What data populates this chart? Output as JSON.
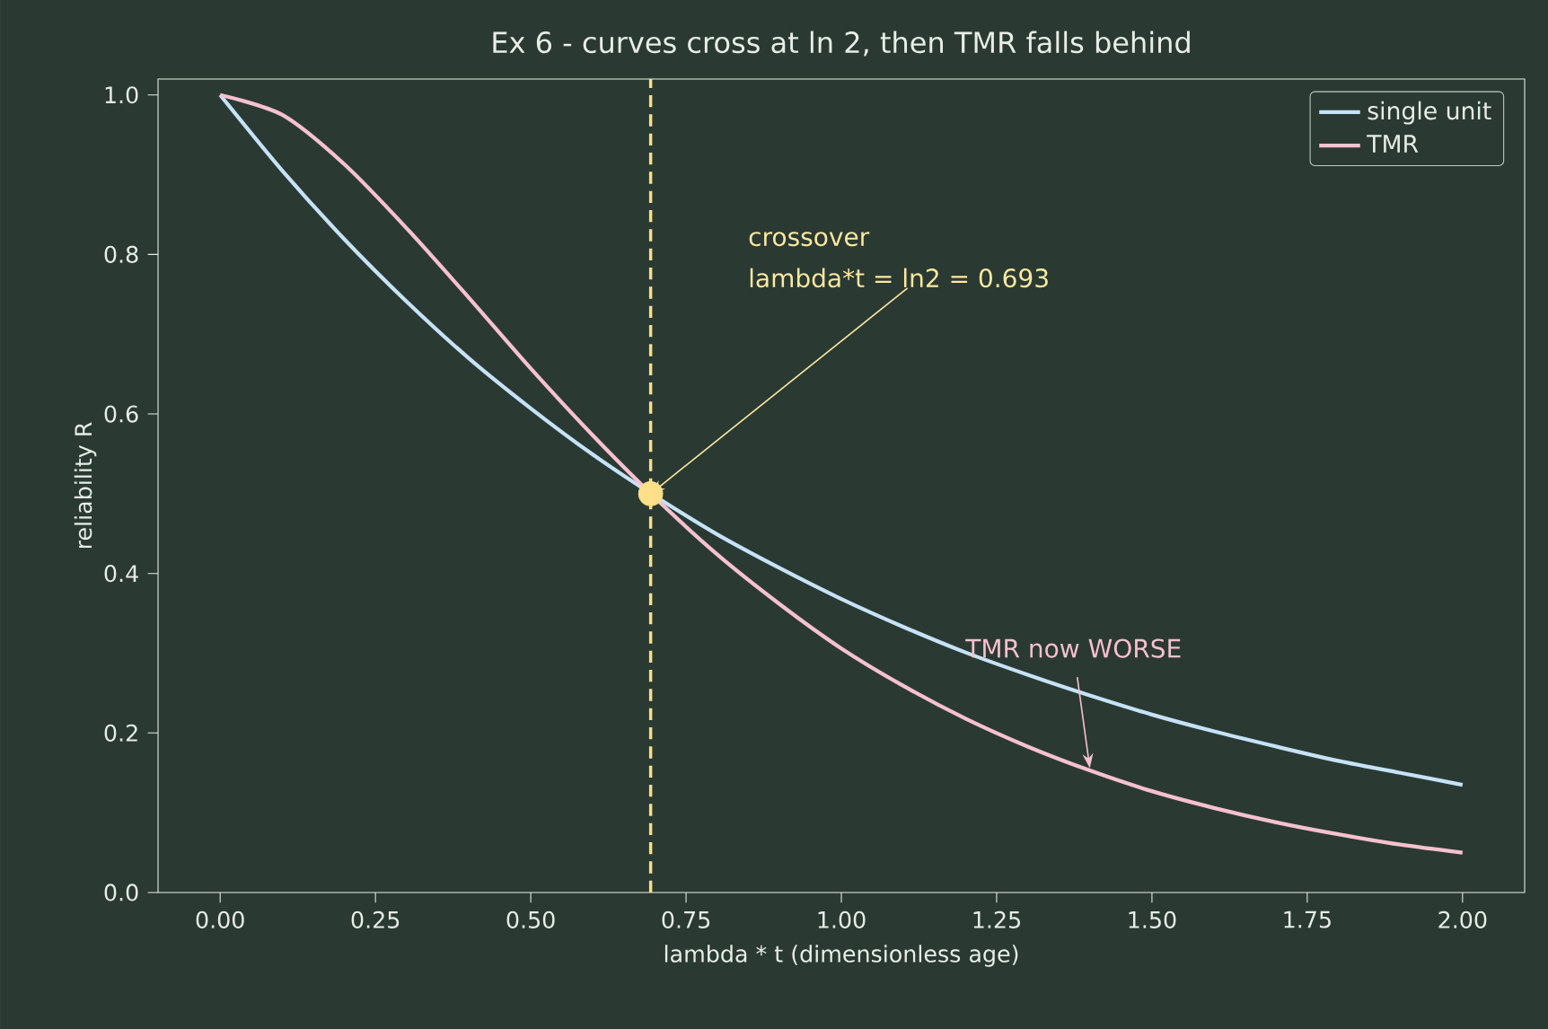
{
  "chart_data": {
    "type": "line",
    "title": "Ex 6 - curves cross at ln 2, then TMR falls behind",
    "xlabel": "lambda * t  (dimensionless age)",
    "ylabel": "reliability  R",
    "x": [
      0,
      0.1,
      0.2,
      0.3,
      0.4,
      0.5,
      0.6,
      0.7,
      0.8,
      0.9,
      1.0,
      1.1,
      1.2,
      1.3,
      1.4,
      1.5,
      1.6,
      1.7,
      1.8,
      1.9,
      2.0
    ],
    "series": [
      {
        "name": "single unit",
        "color": "#c6e2f7",
        "values": [
          1,
          0.905,
          0.819,
          0.741,
          0.67,
          0.607,
          0.549,
          0.497,
          0.449,
          0.407,
          0.368,
          0.333,
          0.301,
          0.273,
          0.247,
          0.223,
          0.202,
          0.183,
          0.165,
          0.15,
          0.135
        ]
      },
      {
        "name": "TMR",
        "color": "#f7c1cf",
        "values": [
          1,
          0.975,
          0.913,
          0.833,
          0.746,
          0.657,
          0.573,
          0.495,
          0.424,
          0.362,
          0.306,
          0.259,
          0.218,
          0.183,
          0.153,
          0.127,
          0.106,
          0.088,
          0.073,
          0.06,
          0.05
        ]
      },
      {
        "type": "scatter",
        "color": "#ffe08a",
        "x": [
          0.693
        ],
        "values": [
          0.5
        ]
      }
    ],
    "xlim": [
      -0.1,
      2.1
    ],
    "ylim": [
      0,
      1.02
    ],
    "xticks": [
      {
        "value": 0,
        "label": "0.00"
      },
      0.25,
      {
        "value": 0.5,
        "label": "0.50"
      },
      0.75,
      {
        "value": 1,
        "label": "1.00"
      },
      1.25,
      {
        "value": 1.5,
        "label": "1.50"
      },
      1.75,
      {
        "value": 2,
        "label": "2.00"
      }
    ],
    "yticks": [
      {
        "value": 0,
        "label": "0.0"
      },
      0.2,
      0.4,
      0.6,
      0.8,
      {
        "value": 1,
        "label": "1.0"
      }
    ],
    "ref_lines": [
      {
        "axis": "x",
        "value": 0.693,
        "color": "#f5e08a",
        "line_style": "dashed"
      }
    ],
    "annotations": [
      "crossover",
      {
        "text": "lambda*t = ln2 = 0.693",
        "x": 0.693,
        "y": 0.5
      },
      {
        "text": "TMR now WORSE",
        "x": 1.4,
        "y": 0.153
      }
    ],
    "legend": "top right",
    "grid": false,
    "line_style": "solid"
  }
}
